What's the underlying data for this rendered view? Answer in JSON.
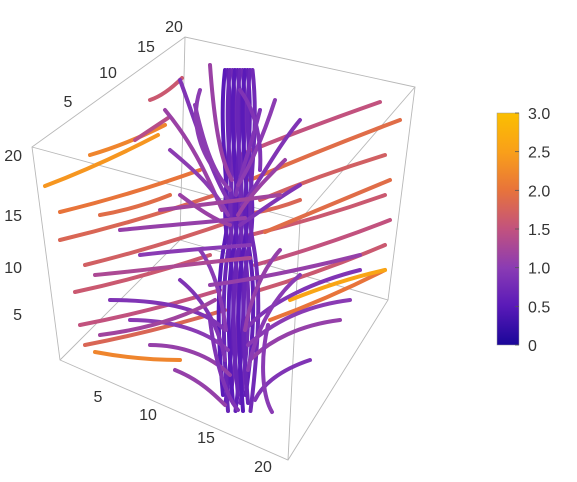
{
  "chart_data": {
    "type": "3d-streamplot",
    "axes": {
      "x": {
        "range": [
          0,
          20
        ],
        "ticks": [
          "5",
          "10",
          "15",
          "20"
        ]
      },
      "y": {
        "range": [
          0,
          20
        ],
        "ticks": [
          "5",
          "10",
          "15",
          "20"
        ]
      },
      "z": {
        "range": [
          0,
          20
        ],
        "ticks": [
          "5",
          "10",
          "15",
          "20"
        ]
      }
    },
    "colorbar": {
      "range": [
        0,
        3
      ],
      "tick_labels": [
        "0",
        "0.5",
        "1.0",
        "1.5",
        "2.0",
        "2.5",
        "3.0"
      ],
      "tick_values": [
        0,
        0.5,
        1.0,
        1.5,
        2.0,
        2.5,
        3.0
      ],
      "colors": [
        "#1a0699",
        "#5a1ab8",
        "#8a3bb4",
        "#c2527e",
        "#e8743a",
        "#f99f1a",
        "#fbbf00"
      ]
    },
    "bounding_box": true,
    "grid": false,
    "streamlines": {
      "straight_left_color_values": [
        2.4,
        2.2,
        2.0,
        1.9,
        1.8,
        1.8,
        1.7,
        1.6,
        1.6,
        1.5,
        1.5,
        1.6,
        1.8,
        2.0,
        2.2
      ],
      "central_core_color_value": 0.5,
      "curved_fan_color_value": 0.9
    }
  }
}
